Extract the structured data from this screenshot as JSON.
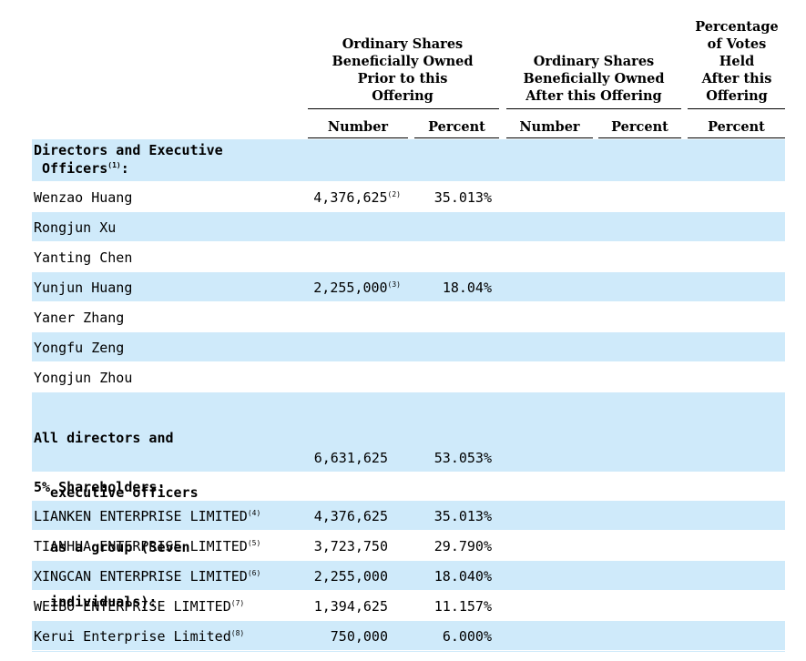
{
  "headers": {
    "prior_group": [
      "Ordinary Shares",
      "Beneficially Owned",
      "Prior to this",
      "Offering"
    ],
    "after_group": [
      "Ordinary Shares",
      "Beneficially Owned",
      "After this Offering"
    ],
    "votes_group": [
      "Percentage",
      "of Votes",
      "Held",
      "After this",
      "Offering"
    ],
    "sub": {
      "number_prior": "Number",
      "percent_prior": "Percent",
      "number_after": "Number",
      "percent_after": "Percent",
      "percent_votes": "Percent"
    }
  },
  "rows": [
    {
      "label": [
        "Directors and Executive",
        " Officers"
      ],
      "sup": "(1)",
      "suffix": ":",
      "section": true,
      "number": "",
      "note": "",
      "percent": ""
    },
    {
      "label": [
        "Wenzao Huang"
      ],
      "sup": "",
      "suffix": "",
      "section": false,
      "number": "4,376,625",
      "note": "(2)",
      "percent": "35.013%"
    },
    {
      "label": [
        "Rongjun Xu"
      ],
      "sup": "",
      "suffix": "",
      "section": false,
      "number": "",
      "note": "",
      "percent": ""
    },
    {
      "label": [
        "Yanting Chen"
      ],
      "sup": "",
      "suffix": "",
      "section": false,
      "number": "",
      "note": "",
      "percent": ""
    },
    {
      "label": [
        "Yunjun Huang"
      ],
      "sup": "",
      "suffix": "",
      "section": false,
      "number": "2,255,000",
      "note": "(3)",
      "percent": "18.04%"
    },
    {
      "label": [
        "Yaner Zhang"
      ],
      "sup": "",
      "suffix": "",
      "section": false,
      "number": "",
      "note": "",
      "percent": ""
    },
    {
      "label": [
        "Yongfu Zeng"
      ],
      "sup": "",
      "suffix": "",
      "section": false,
      "number": "",
      "note": "",
      "percent": ""
    },
    {
      "label": [
        "Yongjun Zhou"
      ],
      "sup": "",
      "suffix": "",
      "section": false,
      "number": "",
      "note": "",
      "percent": ""
    },
    {
      "label": [
        "All directors and",
        "  executive officers",
        "  as a group (Seven",
        "  individuals):"
      ],
      "sup": "",
      "suffix": "",
      "section": true,
      "number": "6,631,625",
      "note": "",
      "percent": "53.053%"
    },
    {
      "label": [
        "5% Shareholders:"
      ],
      "sup": "",
      "suffix": "",
      "section": true,
      "number": "",
      "note": "",
      "percent": ""
    },
    {
      "label": [
        "LIANKEN ENTERPRISE LIMITED"
      ],
      "sup": "(4)",
      "suffix": "",
      "section": false,
      "number": "4,376,625",
      "note": "",
      "percent": "35.013%"
    },
    {
      "label": [
        "TIANHUA ENTERPRISE LIMITED"
      ],
      "sup": "(5)",
      "suffix": "",
      "section": false,
      "number": "3,723,750",
      "note": "",
      "percent": "29.790%"
    },
    {
      "label": [
        "XINGCAN ENTERPRISE LIMITED"
      ],
      "sup": "(6)",
      "suffix": "",
      "section": false,
      "number": "2,255,000",
      "note": "",
      "percent": "18.040%"
    },
    {
      "label": [
        "WEIBO ENTERPRISE LIMITED"
      ],
      "sup": "(7)",
      "suffix": "",
      "section": false,
      "number": "1,394,625",
      "note": "",
      "percent": "11.157%"
    },
    {
      "label": [
        "Kerui Enterprise Limited"
      ],
      "sup": "(8)",
      "suffix": "",
      "section": false,
      "number": "750,000",
      "note": "",
      "percent": "6.000%"
    }
  ]
}
